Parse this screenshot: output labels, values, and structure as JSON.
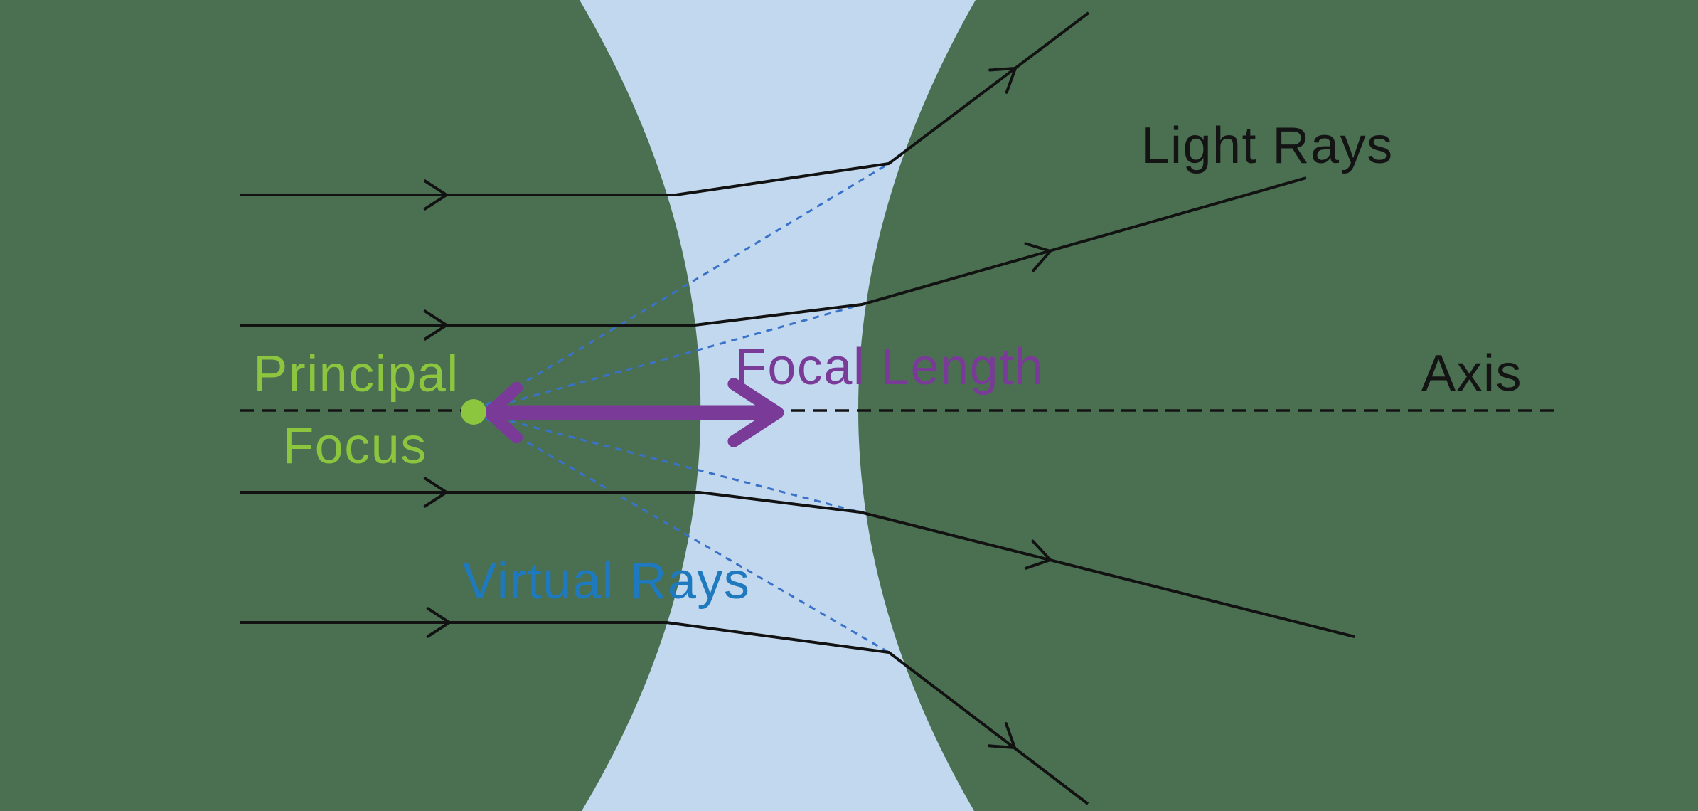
{
  "labels": {
    "light_rays": "Light Rays",
    "principal_focus_line1": "Principal",
    "principal_focus_line2": "Focus",
    "focal_length": "Focal Length",
    "virtual_rays": "Virtual Rays",
    "axis": "Axis"
  },
  "colors": {
    "background": "#4A7051",
    "lens": "#C1D8EE",
    "ray": "#121212",
    "axis": "#141414",
    "label_dark": "#141414",
    "virtual_ray": "#3A72C9",
    "virtual_rays_label": "#1E79BE",
    "principal_focus": "#8CC63E",
    "focal_length": "#7A3B98",
    "focal_arrow": "#7A3B98"
  },
  "figure": {
    "type": "concave-lens-ray-diagram",
    "incoming_ray_count": 4,
    "virtual_ray_count": 4
  }
}
